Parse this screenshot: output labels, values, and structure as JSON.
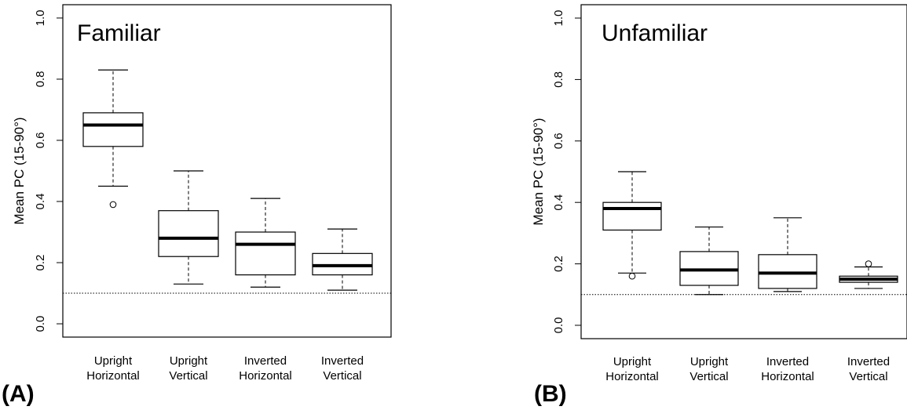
{
  "panel_letters": [
    "(A)",
    "(B)"
  ],
  "chart_data": [
    {
      "type": "box",
      "title": "Familiar",
      "ylabel": "Mean PC (15-90°)",
      "ylim": [
        0,
        1
      ],
      "yticks": [
        "0.0",
        "0.2",
        "0.4",
        "0.6",
        "0.8",
        "1.0"
      ],
      "reference_line": 0.1,
      "categories": [
        {
          "line1": "Upright",
          "line2": "Horizontal"
        },
        {
          "line1": "Upright",
          "line2": "Vertical"
        },
        {
          "line1": "Inverted",
          "line2": "Horizontal"
        },
        {
          "line1": "Inverted",
          "line2": "Vertical"
        }
      ],
      "boxes": [
        {
          "whisker_low": 0.45,
          "q1": 0.58,
          "median": 0.65,
          "q3": 0.69,
          "whisker_high": 0.83,
          "outliers": [
            0.39
          ]
        },
        {
          "whisker_low": 0.13,
          "q1": 0.22,
          "median": 0.28,
          "q3": 0.37,
          "whisker_high": 0.5,
          "outliers": []
        },
        {
          "whisker_low": 0.12,
          "q1": 0.16,
          "median": 0.26,
          "q3": 0.3,
          "whisker_high": 0.41,
          "outliers": []
        },
        {
          "whisker_low": 0.11,
          "q1": 0.16,
          "median": 0.19,
          "q3": 0.23,
          "whisker_high": 0.31,
          "outliers": []
        }
      ]
    },
    {
      "type": "box",
      "title": "Unfamiliar",
      "ylabel": "Mean PC (15-90°)",
      "ylim": [
        0,
        1
      ],
      "yticks": [
        "0.0",
        "0.2",
        "0.4",
        "0.6",
        "0.8",
        "1.0"
      ],
      "reference_line": 0.1,
      "categories": [
        {
          "line1": "Upright",
          "line2": "Horizontal"
        },
        {
          "line1": "Upright",
          "line2": "Vertical"
        },
        {
          "line1": "Inverted",
          "line2": "Horizontal"
        },
        {
          "line1": "Inverted",
          "line2": "Vertical"
        }
      ],
      "boxes": [
        {
          "whisker_low": 0.17,
          "q1": 0.31,
          "median": 0.38,
          "q3": 0.4,
          "whisker_high": 0.5,
          "outliers": [
            0.16
          ]
        },
        {
          "whisker_low": 0.1,
          "q1": 0.13,
          "median": 0.18,
          "q3": 0.24,
          "whisker_high": 0.32,
          "outliers": []
        },
        {
          "whisker_low": 0.11,
          "q1": 0.12,
          "median": 0.17,
          "q3": 0.23,
          "whisker_high": 0.35,
          "outliers": []
        },
        {
          "whisker_low": 0.12,
          "q1": 0.14,
          "median": 0.15,
          "q3": 0.16,
          "whisker_high": 0.19,
          "outliers": [
            0.2
          ]
        }
      ]
    }
  ]
}
